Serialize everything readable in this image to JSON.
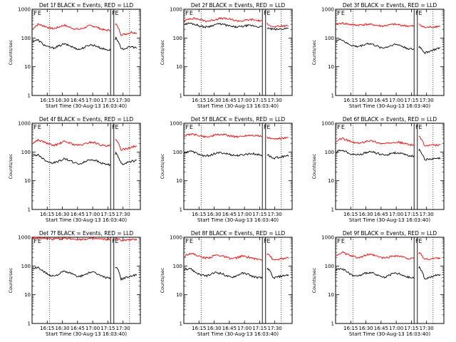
{
  "chart_data": [
    {
      "type": "line",
      "title": "Det 1f BLACK = Events, RED = LLD",
      "xlabel": "Start Time (30-Aug-13 16:03:40)",
      "ylabel": "Counts/sec",
      "yscale": "log",
      "ylim": [
        1,
        1000
      ],
      "x_tick_labels": [
        "16:15",
        "16:30",
        "16:45",
        "17:00",
        "17:15",
        "17:30"
      ],
      "y_tick_labels": [
        "1",
        "10",
        "100",
        "1000"
      ],
      "markers": [
        "F",
        "E",
        "F",
        "E"
      ],
      "series": [
        {
          "color": "#ff0000",
          "values": [
            210,
            300,
            270,
            230,
            210,
            240,
            280,
            240,
            210,
            200,
            230,
            270,
            250,
            210,
            185,
            190,
            300,
            130,
            140,
            160,
            150
          ]
        },
        {
          "color": "#000000",
          "values": [
            80,
            85,
            60,
            48,
            45,
            52,
            62,
            55,
            45,
            40,
            48,
            58,
            55,
            45,
            40,
            38,
            100,
            40,
            45,
            50,
            45
          ]
        }
      ]
    },
    {
      "type": "line",
      "title": "Det 2f BLACK = Events, RED = LLD",
      "xlabel": "Start Time (30-Aug-13 16:03:40)",
      "ylabel": "Counts/sec",
      "yscale": "log",
      "ylim": [
        1,
        1000
      ],
      "x_tick_labels": [
        "16:15",
        "16:30",
        "16:45",
        "17:00",
        "17:15",
        "17:30"
      ],
      "y_tick_labels": [
        "1",
        "10",
        "100",
        "1000"
      ],
      "markers": [
        "F",
        "E",
        "F",
        "E"
      ],
      "series": [
        {
          "color": "#ff0000",
          "values": [
            380,
            480,
            480,
            440,
            390,
            400,
            450,
            480,
            470,
            440,
            400,
            390,
            420,
            440,
            410,
            380,
            320,
            240,
            250,
            260,
            270
          ]
        },
        {
          "color": "#000000",
          "values": [
            300,
            330,
            300,
            260,
            240,
            260,
            300,
            310,
            280,
            250,
            240,
            250,
            270,
            270,
            250,
            240,
            220,
            200,
            200,
            210,
            220
          ]
        }
      ]
    },
    {
      "type": "line",
      "title": "Det 3f BLACK = Events, RED = LLD",
      "xlabel": "Start Time (30-Aug-13 16:03:40)",
      "ylabel": "Counts/sec",
      "yscale": "log",
      "ylim": [
        1,
        1000
      ],
      "x_tick_labels": [
        "16:15",
        "16:30",
        "16:45",
        "17:00",
        "17:15",
        "17:30"
      ],
      "y_tick_labels": [
        "1",
        "10",
        "100",
        "1000"
      ],
      "markers": [
        "F",
        "E",
        "F",
        "E"
      ],
      "series": [
        {
          "color": "#ff0000",
          "values": [
            300,
            330,
            310,
            290,
            280,
            290,
            300,
            290,
            270,
            260,
            280,
            300,
            290,
            270,
            260,
            260,
            300,
            230,
            240,
            250,
            260
          ]
        },
        {
          "color": "#000000",
          "values": [
            80,
            90,
            65,
            55,
            50,
            55,
            65,
            60,
            50,
            45,
            50,
            60,
            58,
            48,
            42,
            40,
            50,
            30,
            35,
            40,
            45
          ]
        }
      ]
    },
    {
      "type": "line",
      "title": "Det 4f BLACK = Events, RED = LLD",
      "xlabel": "Start Time (30-Aug-13 16:03:40)",
      "ylabel": "Counts/sec",
      "yscale": "log",
      "ylim": [
        1,
        1000
      ],
      "x_tick_labels": [
        "16:15",
        "16:30",
        "16:45",
        "17:00",
        "17:15",
        "17:30"
      ],
      "y_tick_labels": [
        "1",
        "10",
        "100",
        "1000"
      ],
      "markers": [
        "F",
        "E",
        "F",
        "E"
      ],
      "series": [
        {
          "color": "#ff0000",
          "values": [
            200,
            260,
            230,
            190,
            170,
            190,
            230,
            210,
            180,
            170,
            190,
            220,
            210,
            180,
            160,
            165,
            260,
            120,
            130,
            150,
            160
          ]
        },
        {
          "color": "#000000",
          "values": [
            75,
            80,
            58,
            45,
            42,
            48,
            58,
            52,
            42,
            38,
            45,
            55,
            52,
            42,
            38,
            36,
            90,
            38,
            42,
            48,
            50
          ]
        }
      ]
    },
    {
      "type": "line",
      "title": "Det 5f BLACK = Events, RED = LLD",
      "xlabel": "Start Time (30-Aug-13 16:03:40)",
      "ylabel": "Counts/sec",
      "yscale": "log",
      "ylim": [
        1,
        1000
      ],
      "x_tick_labels": [
        "16:15",
        "16:30",
        "16:45",
        "17:00",
        "17:15",
        "17:30"
      ],
      "y_tick_labels": [
        "1",
        "10",
        "100",
        "1000"
      ],
      "markers": [
        "F",
        "E",
        "F",
        "E"
      ],
      "series": [
        {
          "color": "#ff0000",
          "values": [
            360,
            420,
            400,
            370,
            340,
            350,
            390,
            410,
            390,
            360,
            340,
            350,
            380,
            390,
            370,
            340,
            320,
            280,
            290,
            300,
            310
          ]
        },
        {
          "color": "#000000",
          "values": [
            90,
            110,
            95,
            80,
            72,
            78,
            90,
            95,
            88,
            80,
            75,
            78,
            85,
            88,
            82,
            75,
            80,
            60,
            65,
            70,
            75
          ]
        }
      ]
    },
    {
      "type": "line",
      "title": "Det 6f BLACK = Events, RED = LLD",
      "xlabel": "Start Time (30-Aug-13 16:03:40)",
      "ylabel": "Counts/sec",
      "yscale": "log",
      "ylim": [
        1,
        1000
      ],
      "x_tick_labels": [
        "16:15",
        "16:30",
        "16:45",
        "17:00",
        "17:15",
        "17:30"
      ],
      "y_tick_labels": [
        "1",
        "10",
        "100",
        "1000"
      ],
      "markers": [
        "F",
        "E",
        "F",
        "E"
      ],
      "series": [
        {
          "color": "#ff0000",
          "values": [
            220,
            300,
            260,
            220,
            200,
            210,
            250,
            240,
            210,
            190,
            200,
            230,
            220,
            200,
            180,
            180,
            350,
            160,
            170,
            170,
            175
          ]
        },
        {
          "color": "#000000",
          "values": [
            100,
            120,
            100,
            85,
            80,
            85,
            100,
            100,
            88,
            80,
            82,
            95,
            92,
            82,
            75,
            72,
            120,
            55,
            55,
            58,
            60
          ]
        }
      ]
    },
    {
      "type": "line",
      "title": "Det 7f BLACK = Events, RED = LLD",
      "xlabel": "Start Time (30-Aug-13 16:03:40)",
      "ylabel": "Counts/sec",
      "yscale": "log",
      "ylim": [
        1,
        1000
      ],
      "x_tick_labels": [
        "16:15",
        "16:30",
        "16:45",
        "17:00",
        "17:15",
        "17:30"
      ],
      "y_tick_labels": [
        "1",
        "10",
        "100",
        "1000"
      ],
      "markers": [
        "F",
        "E",
        "F",
        "E"
      ],
      "series": [
        {
          "color": "#ff0000",
          "values": [
            900,
            950,
            920,
            880,
            860,
            880,
            920,
            900,
            870,
            850,
            870,
            900,
            890,
            860,
            840,
            840,
            900,
            780,
            800,
            820,
            830
          ]
        },
        {
          "color": "#000000",
          "values": [
            80,
            90,
            65,
            50,
            45,
            52,
            65,
            58,
            48,
            42,
            50,
            60,
            58,
            46,
            40,
            38,
            95,
            35,
            40,
            45,
            48
          ]
        }
      ]
    },
    {
      "type": "line",
      "title": "Det 8f BLACK = Events, RED = LLD",
      "xlabel": "Start Time (30-Aug-13 16:03:40)",
      "ylabel": "Counts/sec",
      "yscale": "log",
      "ylim": [
        1,
        1000
      ],
      "x_tick_labels": [
        "16:15",
        "16:30",
        "16:45",
        "17:00",
        "17:15",
        "17:30"
      ],
      "y_tick_labels": [
        "1",
        "10",
        "100",
        "1000"
      ],
      "markers": [
        "F",
        "E",
        "F",
        "E"
      ],
      "series": [
        {
          "color": "#ff0000",
          "values": [
            220,
            280,
            250,
            210,
            190,
            200,
            240,
            230,
            200,
            180,
            190,
            220,
            210,
            190,
            170,
            170,
            280,
            160,
            170,
            180,
            190
          ]
        },
        {
          "color": "#000000",
          "values": [
            75,
            85,
            62,
            50,
            45,
            50,
            60,
            56,
            46,
            40,
            46,
            56,
            54,
            44,
            40,
            38,
            85,
            38,
            42,
            46,
            50
          ]
        }
      ]
    },
    {
      "type": "line",
      "title": "Det 9f BLACK = Events, RED = LLD",
      "xlabel": "Start Time (30-Aug-13 16:03:40)",
      "ylabel": "Counts/sec",
      "yscale": "log",
      "ylim": [
        1,
        1000
      ],
      "x_tick_labels": [
        "16:15",
        "16:30",
        "16:45",
        "17:00",
        "17:15",
        "17:30"
      ],
      "y_tick_labels": [
        "1",
        "10",
        "100",
        "1000"
      ],
      "markers": [
        "F",
        "E",
        "F",
        "E"
      ],
      "series": [
        {
          "color": "#ff0000",
          "values": [
            230,
            300,
            260,
            220,
            200,
            210,
            250,
            240,
            210,
            190,
            200,
            230,
            220,
            200,
            180,
            180,
            290,
            170,
            175,
            185,
            195
          ]
        },
        {
          "color": "#000000",
          "values": [
            75,
            85,
            62,
            48,
            44,
            50,
            60,
            56,
            46,
            40,
            46,
            56,
            54,
            44,
            40,
            38,
            90,
            36,
            40,
            46,
            50
          ]
        }
      ]
    }
  ]
}
